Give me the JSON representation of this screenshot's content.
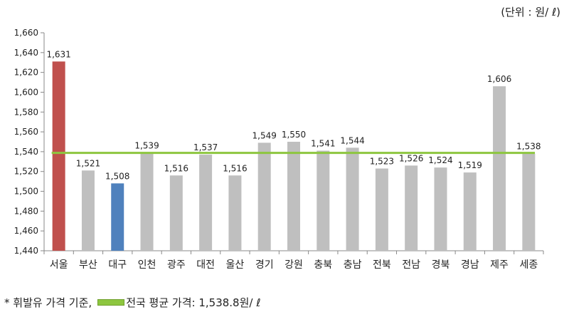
{
  "unit_label": "(단위 : 원/ ℓ)",
  "footnote": {
    "note": "* 휘발유 가격 기준,",
    "legend_label": "전국 평균 가격: 1,538.8원/ ℓ"
  },
  "colors": {
    "default_bar": "#bfbfbf",
    "highest_bar": "#c0504d",
    "lowest_bar": "#4f81bd",
    "average_line": "#8dc63f",
    "axis": "#888888"
  },
  "chart_data": {
    "type": "bar",
    "categories": [
      "서울",
      "부산",
      "대구",
      "인천",
      "광주",
      "대전",
      "울산",
      "경기",
      "강원",
      "충북",
      "충남",
      "전북",
      "전남",
      "경북",
      "경남",
      "제주",
      "세종"
    ],
    "values": [
      1631,
      1521,
      1508,
      1539,
      1516,
      1537,
      1516,
      1549,
      1550,
      1541,
      1544,
      1523,
      1526,
      1524,
      1519,
      1606,
      1538
    ],
    "value_labels": [
      "1,631",
      "1,521",
      "1,508",
      "1,539",
      "1,516",
      "1,537",
      "1,516",
      "1,549",
      "1,550",
      "1,541",
      "1,544",
      "1,523",
      "1,526",
      "1,524",
      "1,519",
      "1,606",
      "1,538"
    ],
    "highlight": {
      "highest": "서울",
      "lowest": "대구"
    },
    "reference_line": {
      "value": 1538.8
    },
    "ylim": [
      1440,
      1660
    ],
    "yticks": [
      1440,
      1460,
      1480,
      1500,
      1520,
      1540,
      1560,
      1580,
      1600,
      1620,
      1640,
      1660
    ],
    "ytick_labels": [
      "1,440",
      "1,460",
      "1,480",
      "1,500",
      "1,520",
      "1,540",
      "1,560",
      "1,580",
      "1,600",
      "1,620",
      "1,640",
      "1,660"
    ],
    "grid": false,
    "legend": "bottom-left"
  }
}
